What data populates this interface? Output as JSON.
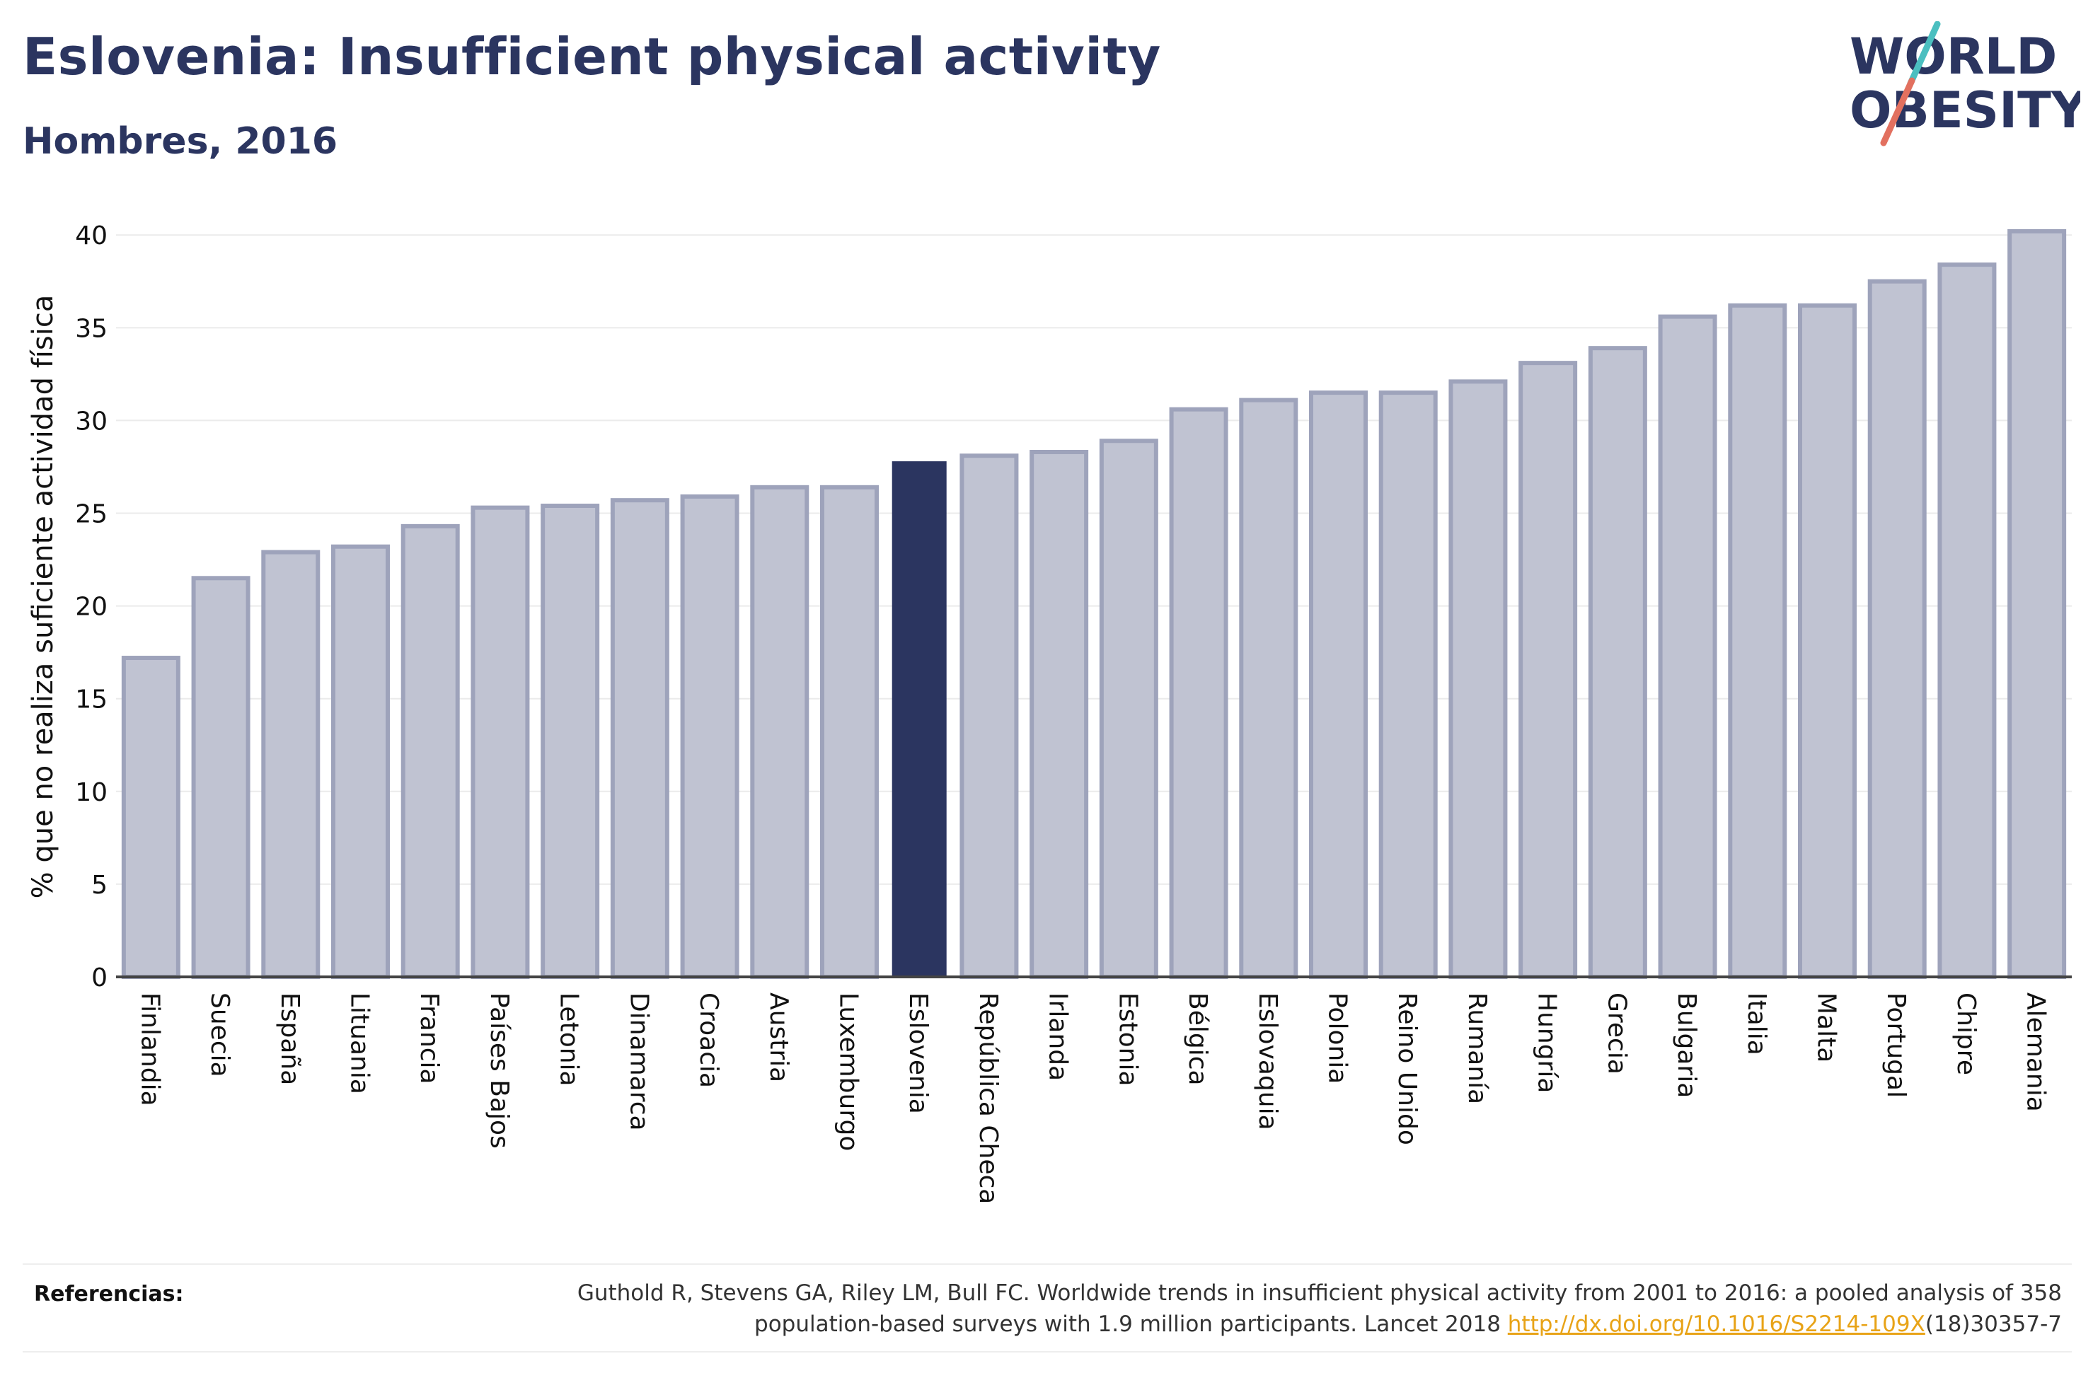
{
  "header": {
    "title": "Eslovenia: Insufficient physical activity",
    "subtitle": "Hombres, 2016"
  },
  "logo": {
    "line1": "WORLD",
    "line2": "OBESITY",
    "slash_colors": [
      "#4bbfc0",
      "#e2705f"
    ]
  },
  "colors": {
    "bar": "#c0c3d2",
    "bar_border": "#9ea3bb",
    "highlight": "#2b3560",
    "text": "#2b3560",
    "link": "#e8a317"
  },
  "chart_data": {
    "type": "bar",
    "title": "Eslovenia: Insufficient physical activity",
    "subtitle": "Hombres, 2016",
    "xlabel": "",
    "ylabel": "% que no realiza suficiente actividad física",
    "ylim": [
      0,
      41
    ],
    "yticks": [
      0,
      5,
      10,
      15,
      20,
      25,
      30,
      35,
      40
    ],
    "grid": true,
    "highlight": "Eslovenia",
    "categories": [
      "Finlandia",
      "Suecia",
      "España",
      "Lituania",
      "Francia",
      "Países Bajos",
      "Letonia",
      "Dinamarca",
      "Croacia",
      "Austria",
      "Luxemburgo",
      "Eslovenia",
      "República Checa",
      "Irlanda",
      "Estonia",
      "Bélgica",
      "Eslovaquia",
      "Polonia",
      "Reino Unido",
      "Rumanía",
      "Hungría",
      "Grecia",
      "Bulgaria",
      "Italia",
      "Malta",
      "Portugal",
      "Chipre",
      "Alemania"
    ],
    "values": [
      17.2,
      21.5,
      22.9,
      23.2,
      24.3,
      25.3,
      25.4,
      25.7,
      25.9,
      26.4,
      26.4,
      27.8,
      28.1,
      28.3,
      28.9,
      30.6,
      31.1,
      31.5,
      31.5,
      32.1,
      33.1,
      33.9,
      35.6,
      36.2,
      36.2,
      37.5,
      38.4,
      40.2
    ]
  },
  "references": {
    "label": "Referencias:",
    "line1": "Guthold R, Stevens GA, Riley LM, Bull FC. Worldwide trends in insufficient physical activity from 2001 to 2016: a pooled analysis of 358",
    "line2_before": "population-based surveys with 1.9 million participants. Lancet 2018 ",
    "link": "http://dx.doi.org/10.1016/S2214-109X",
    "line2_after": "(18)30357-7"
  }
}
